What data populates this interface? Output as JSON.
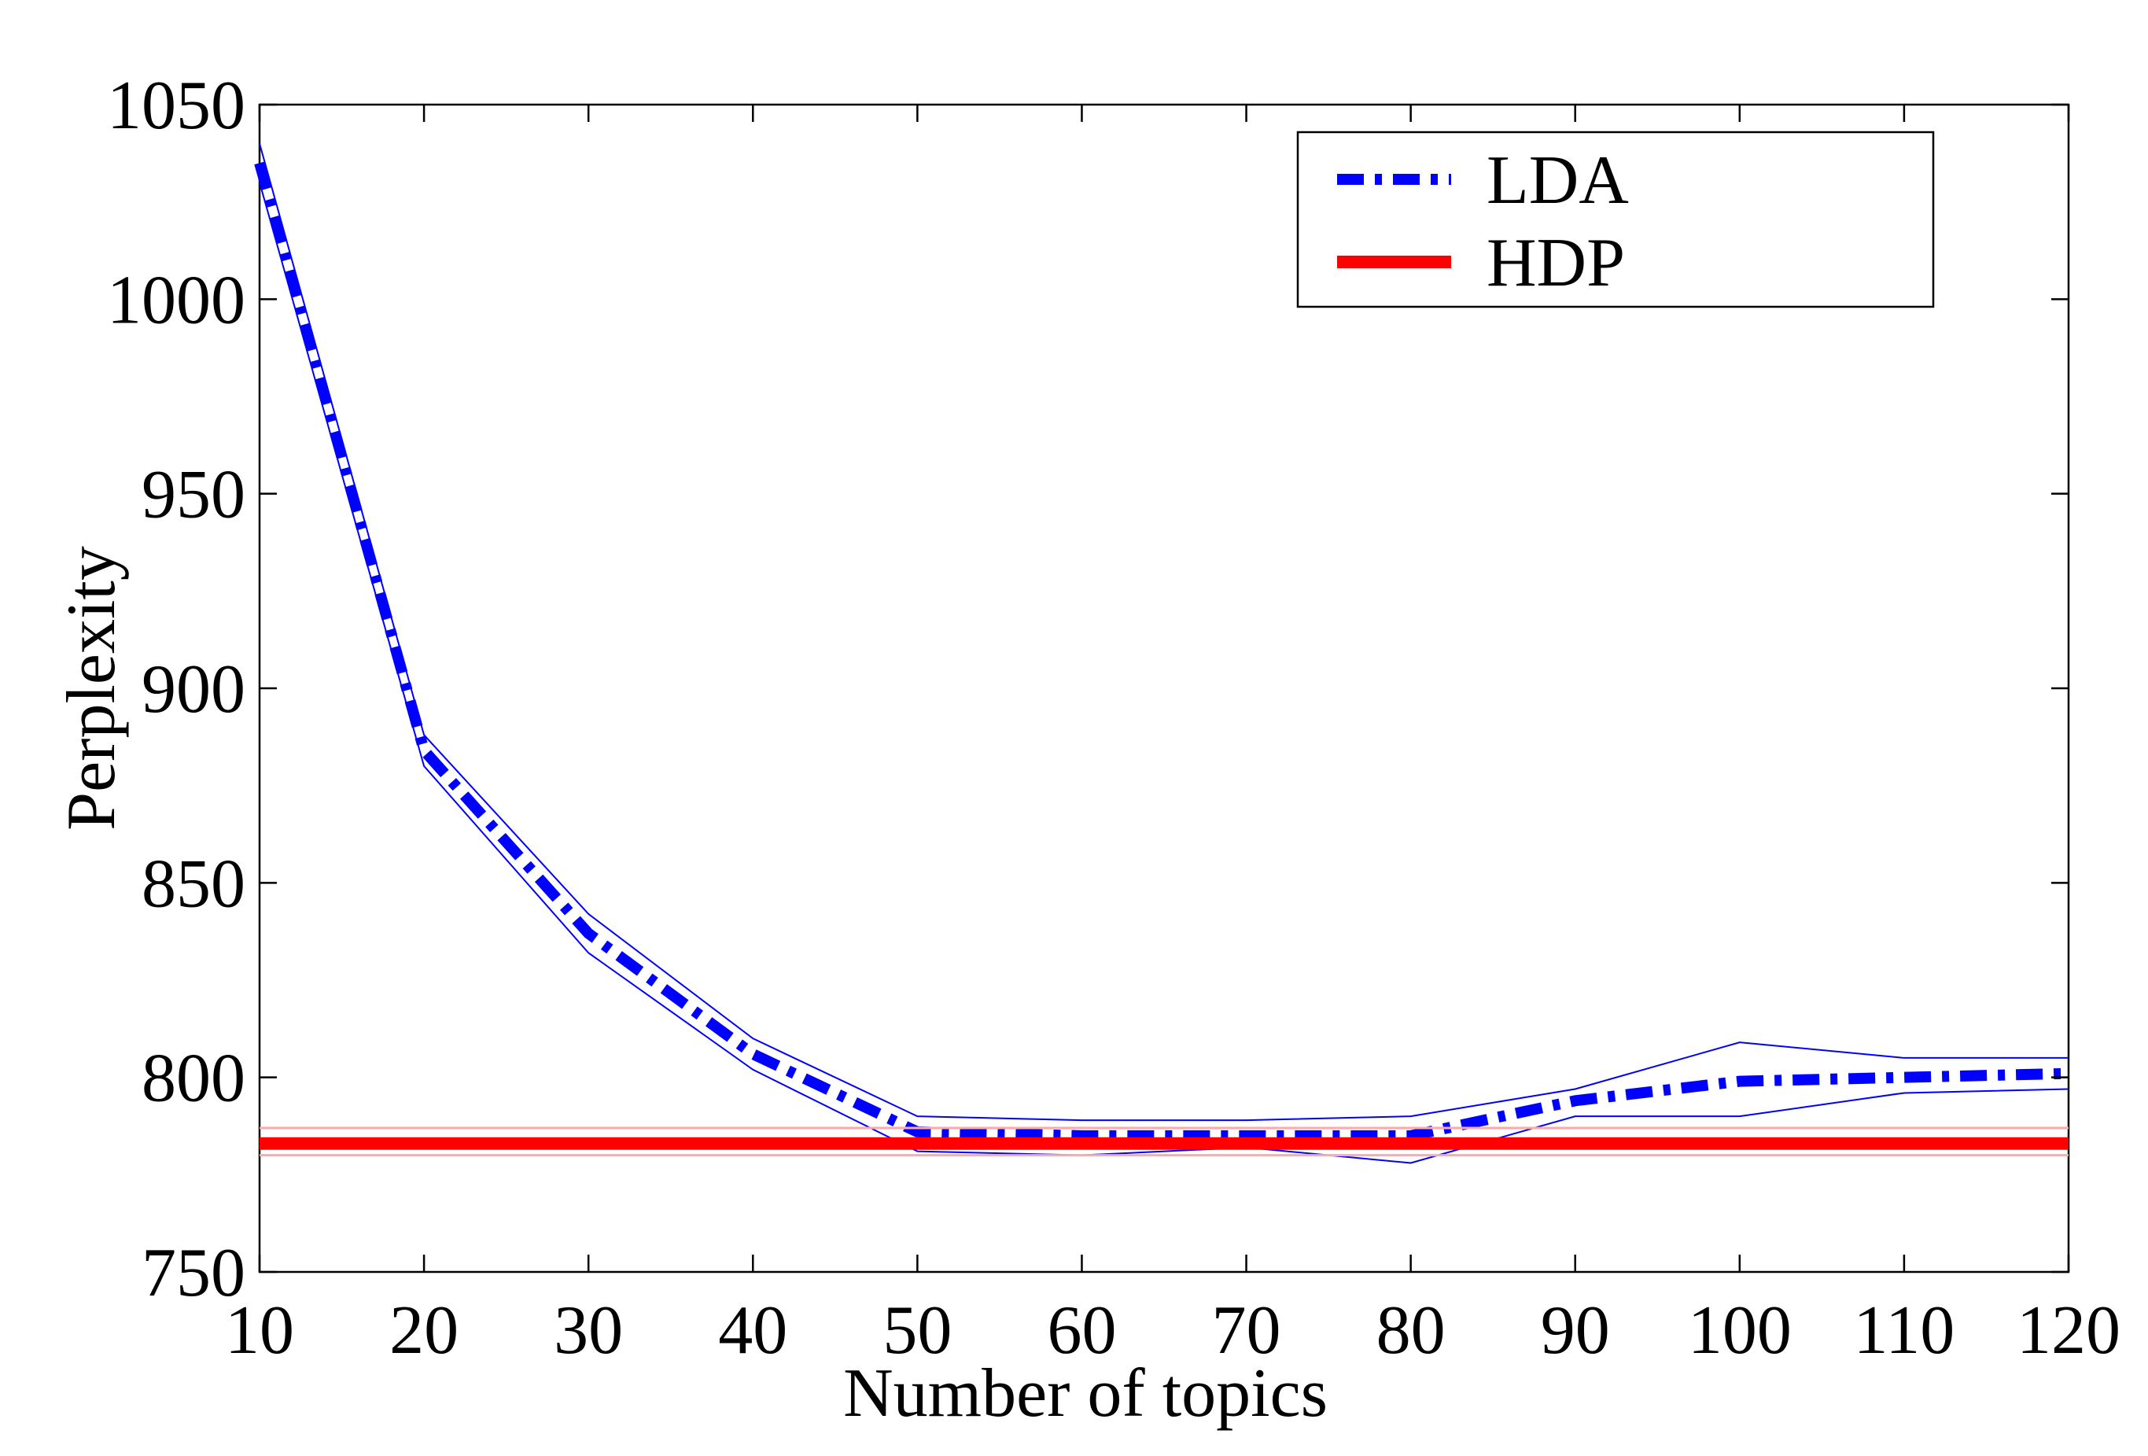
{
  "chart_data": {
    "type": "line",
    "title": "",
    "xlabel": "Number of topics",
    "ylabel": "Perplexity",
    "xlim": [
      10,
      120
    ],
    "ylim": [
      750,
      1050
    ],
    "x_ticks": [
      10,
      20,
      30,
      40,
      50,
      60,
      70,
      80,
      90,
      100,
      110,
      120
    ],
    "y_ticks": [
      750,
      800,
      850,
      900,
      950,
      1000,
      1050
    ],
    "grid": false,
    "legend_position": "top-right",
    "series": [
      {
        "name": "LDA",
        "style": "dash-dot",
        "color": "#0000ff",
        "x": [
          10,
          20,
          30,
          40,
          50,
          60,
          70,
          80,
          90,
          100,
          110,
          120
        ],
        "values": [
          1035,
          884,
          837,
          806,
          786,
          785,
          785,
          785,
          794,
          799,
          800,
          801
        ],
        "upper": [
          1040,
          888,
          842,
          810,
          790,
          789,
          789,
          790,
          797,
          809,
          805,
          805
        ],
        "lower": [
          1030,
          880,
          832,
          802,
          781,
          780,
          782,
          778,
          790,
          790,
          796,
          797
        ]
      },
      {
        "name": "HDP",
        "style": "solid",
        "color": "#ff0000",
        "x": [
          10,
          120
        ],
        "values": [
          783,
          783
        ],
        "upper": [
          787,
          787
        ],
        "lower": [
          780,
          780
        ]
      }
    ]
  }
}
